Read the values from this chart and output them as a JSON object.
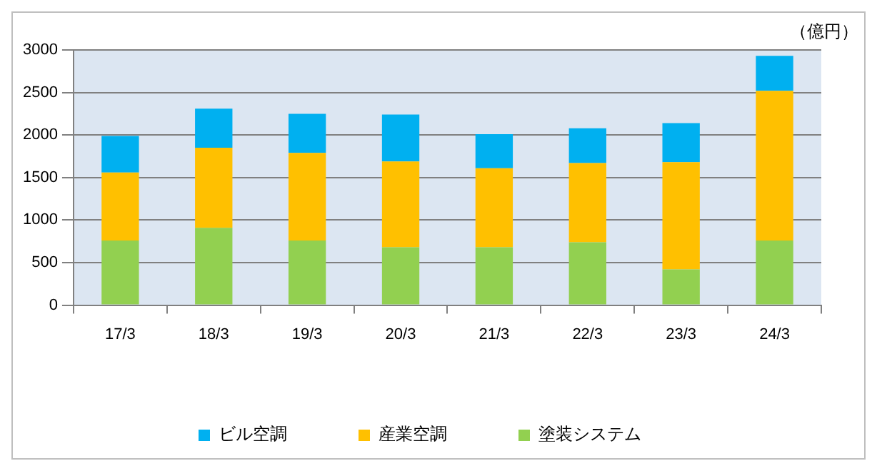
{
  "chart_data": {
    "type": "bar",
    "stacked": true,
    "ylabel": "（億円）",
    "categories": [
      "17/3",
      "18/3",
      "19/3",
      "20/3",
      "21/3",
      "22/3",
      "23/3",
      "24/3"
    ],
    "series": [
      {
        "name": "塗装システム",
        "color": "#92d050",
        "values": [
          760,
          910,
          760,
          680,
          680,
          740,
          420,
          760
        ]
      },
      {
        "name": "産業空調",
        "color": "#ffc000",
        "values": [
          800,
          940,
          1030,
          1010,
          930,
          930,
          1260,
          1760
        ]
      },
      {
        "name": "ビル空調",
        "color": "#00b0f0",
        "values": [
          430,
          460,
          460,
          550,
          400,
          410,
          460,
          410
        ]
      }
    ],
    "ylim": [
      0,
      3000
    ],
    "yticks": [
      0,
      500,
      1000,
      1500,
      2000,
      2500,
      3000
    ],
    "grid": "y",
    "legend": "bottom"
  }
}
